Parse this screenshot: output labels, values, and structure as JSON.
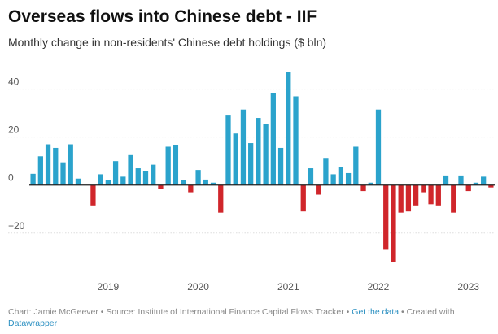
{
  "chart_data": {
    "type": "bar",
    "title": "Overseas flows into Chinese debt - IIF",
    "subtitle": "Monthly change in non-residents' Chinese debt holdings ($ bln)",
    "categories": [
      null,
      null,
      null,
      null,
      null,
      null,
      null,
      null,
      null,
      null,
      "2019",
      null,
      null,
      null,
      null,
      null,
      null,
      null,
      null,
      null,
      null,
      null,
      "2020",
      null,
      null,
      null,
      null,
      null,
      null,
      null,
      null,
      null,
      null,
      null,
      "2021",
      null,
      null,
      null,
      null,
      null,
      null,
      null,
      null,
      null,
      null,
      null,
      "2022",
      null,
      null,
      null,
      null,
      null,
      null,
      null,
      null,
      null,
      null,
      null,
      "2023",
      null,
      null,
      null
    ],
    "values": [
      4.7,
      12,
      17,
      15.5,
      9.5,
      17,
      2.7,
      0,
      -8.5,
      4.5,
      2,
      10,
      3.5,
      12.5,
      7,
      5.8,
      8.5,
      -1.5,
      16,
      16.5,
      2,
      -3,
      6.3,
      2.3,
      1,
      -11.5,
      29,
      21.5,
      31.5,
      17.5,
      28,
      25.5,
      38.5,
      15.5,
      47,
      37,
      -11,
      7,
      -4,
      11,
      4.5,
      7.5,
      5,
      16,
      -2.5,
      1,
      31.5,
      -27,
      -32,
      -11.5,
      -11,
      -8.5,
      -3,
      -8,
      -8.5,
      4,
      -11.5,
      4,
      -2.5,
      1,
      3.5,
      -1
    ],
    "positive_color": "#2ba3cc",
    "negative_color": "#d0262b",
    "ylim": [
      -36,
      48
    ],
    "yticks": [
      {
        "value": -20,
        "label": "−20"
      },
      0,
      20,
      40
    ],
    "grid": true
  },
  "footer": {
    "credit": "Chart: Jamie McGeever • Source: Institute of International Finance Capital Flows Tracker •",
    "data_link": "Get the data",
    "created": "• Created with",
    "tool": "Datawrapper"
  }
}
